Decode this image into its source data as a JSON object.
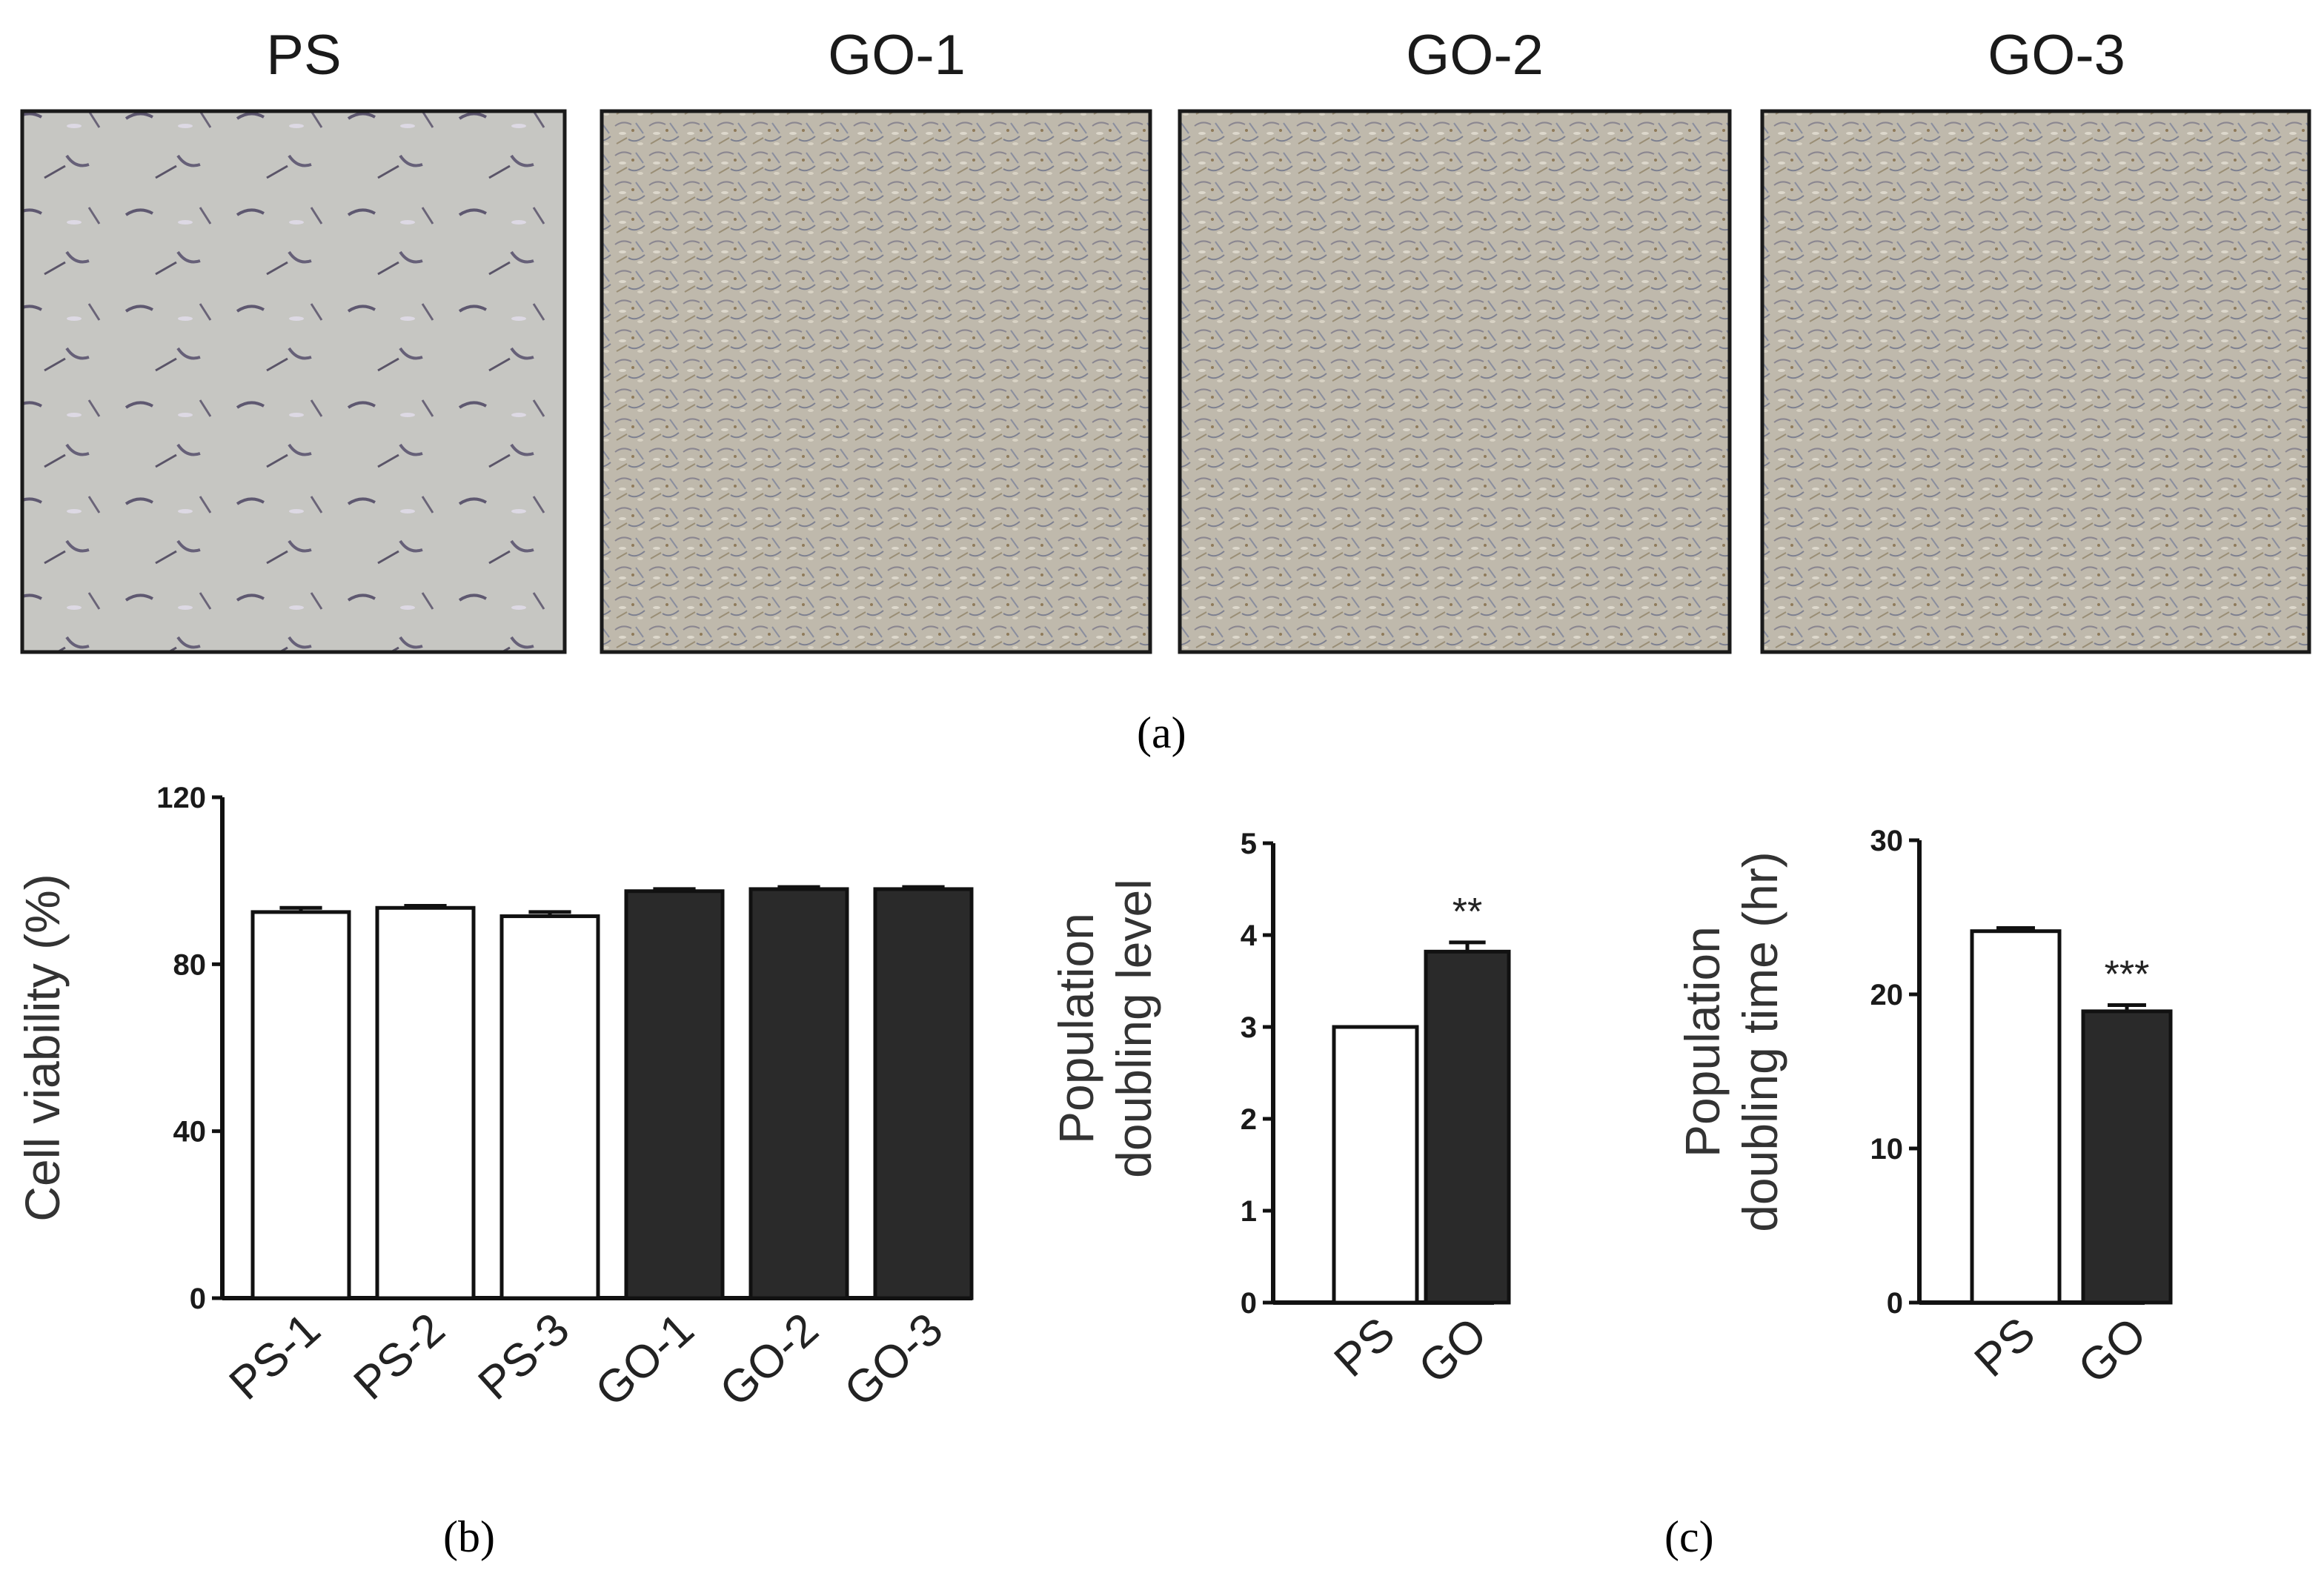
{
  "micrographs": [
    {
      "title": "PS",
      "density": "sparse"
    },
    {
      "title": "GO-1",
      "density": "dense"
    },
    {
      "title": "GO-2",
      "density": "dense"
    },
    {
      "title": "GO-3",
      "density": "dense"
    }
  ],
  "panel_labels": {
    "a": "(a)",
    "b": "(b)",
    "c": "(c)"
  },
  "colors": {
    "open_bar": "#ffffff",
    "filled_bar": "#2a2a2a",
    "axis": "#111111",
    "micro_bg": "#c4c4c0",
    "micro_frame": "#1a1a1a"
  },
  "chart_data": [
    {
      "type": "bar",
      "panel": "b",
      "categories": [
        "PS-1",
        "PS-2",
        "PS-3",
        "GO-1",
        "GO-2",
        "GO-3"
      ],
      "values": [
        92.5,
        93.5,
        91.5,
        97.5,
        98,
        98
      ],
      "errors": [
        1,
        0.5,
        1,
        0.5,
        0.5,
        0.5
      ],
      "fills": [
        "open",
        "open",
        "open",
        "filled",
        "filled",
        "filled"
      ],
      "ylabel": "Cell viability (%)",
      "ylim": [
        0,
        120
      ],
      "yticks": [
        0,
        40,
        80,
        120
      ],
      "grid": false
    },
    {
      "type": "bar",
      "panel": "c",
      "categories": [
        "PS",
        "GO"
      ],
      "values": [
        3.0,
        3.82
      ],
      "errors": [
        0,
        0.1
      ],
      "fills": [
        "open",
        "filled"
      ],
      "significance": [
        "",
        "**"
      ],
      "ylabel_lines": [
        "Population",
        "doubling level"
      ],
      "ylim": [
        0,
        5
      ],
      "yticks": [
        0,
        1,
        2,
        3,
        4,
        5
      ],
      "grid": false
    },
    {
      "type": "bar",
      "panel": "c",
      "categories": [
        "PS",
        "GO"
      ],
      "values": [
        24.1,
        18.9
      ],
      "errors": [
        0.2,
        0.4
      ],
      "fills": [
        "open",
        "filled"
      ],
      "significance": [
        "",
        "***"
      ],
      "ylabel_lines": [
        "Population",
        "doubling time (hr)"
      ],
      "ylim": [
        0,
        30
      ],
      "yticks": [
        0,
        10,
        20,
        30
      ],
      "grid": false
    }
  ]
}
